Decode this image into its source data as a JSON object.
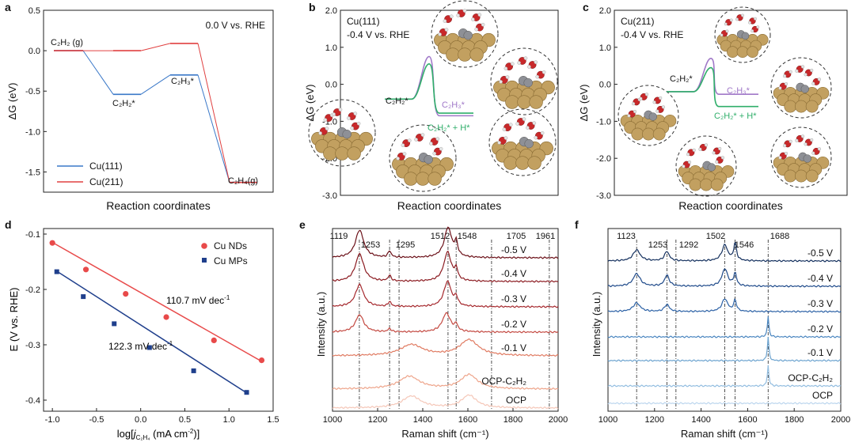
{
  "figure": {
    "panels": [
      {
        "label": "a"
      },
      {
        "label": "b"
      },
      {
        "label": "c"
      },
      {
        "label": "d"
      },
      {
        "label": "e"
      },
      {
        "label": "f"
      }
    ]
  },
  "colors": {
    "cu111": "#3a78c8",
    "cu211": "#e04040",
    "nds": "#e84a4a",
    "mps": "#1f3f8c",
    "green": "#2fae6a",
    "purple": "#a078c8",
    "atom_cu": "#c2a060",
    "atom_o": "#c8282a",
    "atom_c": "#8e9096",
    "atom_h": "#e6e6e6"
  },
  "chart_data": [
    {
      "panel": "a",
      "type": "line",
      "title": "0.0 V vs. RHE",
      "xlabel": "Reaction coordinates",
      "ylabel": "ΔG (eV)",
      "ylim": [
        -1.75,
        0.5
      ],
      "yticks": [
        "0.5",
        "0.0",
        "-0.5",
        "-1.0",
        "-1.5"
      ],
      "ytick_values": [
        0.5,
        0.0,
        -0.5,
        -1.0,
        -1.5
      ],
      "states": [
        "C2H2(g)",
        "C2H2*",
        "C2H3*",
        "C2H4(g)"
      ],
      "state_labels": {
        "s0": "C₂H₂ (g)",
        "s1": "C₂H₂*",
        "s2": "C₂H₃*",
        "s3": "C₂H₄(g)"
      },
      "series": [
        {
          "name": "Cu(111)",
          "values": [
            0.0,
            -0.54,
            -0.3,
            -1.63
          ]
        },
        {
          "name": "Cu(211)",
          "values": [
            0.0,
            0.0,
            0.09,
            -1.63
          ]
        }
      ]
    },
    {
      "panel": "b",
      "type": "line",
      "title_lines": [
        "Cu(111)",
        "-0.4 V vs. RHE"
      ],
      "xlabel": "Reaction coordinates",
      "ylabel": "ΔG (eV)",
      "ylim": [
        -3.0,
        2.0
      ],
      "yticks": [
        "2.0",
        "1.0",
        "0.0",
        "-1.0",
        "-2.0",
        "-3.0"
      ],
      "ytick_values": [
        2.0,
        1.0,
        0.0,
        -1.0,
        -2.0,
        -3.0
      ],
      "annotations": {
        "initial": "C₂H₂*",
        "h_path": "C₂H₃*",
        "h_path_alt": "C₂H₂* + H*"
      },
      "paths": [
        {
          "name": "C2H3*",
          "start": -0.4,
          "barrier": 0.75,
          "end": -0.85
        },
        {
          "name": "C2H2* + H*",
          "start": -0.4,
          "barrier": 0.55,
          "end": -0.78
        }
      ]
    },
    {
      "panel": "c",
      "type": "line",
      "title_lines": [
        "Cu(211)",
        "-0.4 V vs. RHE"
      ],
      "xlabel": "Reaction coordinates",
      "ylabel": "ΔG (eV)",
      "ylim": [
        -3.0,
        2.0
      ],
      "yticks": [
        "2.0",
        "1.0",
        "0.0",
        "-1.0",
        "-2.0",
        "-3.0"
      ],
      "ytick_values": [
        2.0,
        1.0,
        0.0,
        -1.0,
        -2.0,
        -3.0
      ],
      "annotations": {
        "initial": "C₂H₂*",
        "h_path": "C₂H₃*",
        "h_path_alt": "C₂H₂* + H*"
      },
      "paths": [
        {
          "name": "C2H3*",
          "start": -0.2,
          "barrier": 0.7,
          "end": -0.27
        },
        {
          "name": "C2H2* + H*",
          "start": -0.2,
          "barrier": 0.45,
          "end": -0.6
        }
      ]
    },
    {
      "panel": "d",
      "type": "scatter",
      "xlabel": "log[j C2H4 (mA cm-2)]",
      "xlabel_parts": {
        "pre": "log[",
        "j": "j",
        "sub": "C₂H₄",
        "post": " (mA cm",
        "sup": "-2",
        "end": ")]"
      },
      "ylabel": "E (V vs. RHE)",
      "xlim": [
        -1.1,
        1.5
      ],
      "ylim": [
        -0.42,
        -0.09
      ],
      "xticks": [
        "-1.0",
        "-0.5",
        "0.0",
        "0.5",
        "1.0",
        "1.5"
      ],
      "xtick_values": [
        -1.0,
        -0.5,
        0.0,
        0.5,
        1.0,
        1.5
      ],
      "yticks": [
        "-0.1",
        "-0.2",
        "-0.3",
        "-0.4"
      ],
      "ytick_values": [
        -0.1,
        -0.2,
        -0.3,
        -0.4
      ],
      "series": [
        {
          "name": "Cu NDs",
          "x": [
            -1.0,
            -0.62,
            -0.17,
            0.29,
            0.83,
            1.37
          ],
          "y": [
            -0.116,
            -0.164,
            -0.208,
            -0.25,
            -0.292,
            -0.328
          ],
          "fit": [
            [
              -1.0,
              -0.115
            ],
            [
              1.37,
              -0.33
            ]
          ],
          "slope_label": "110.7 mV dec",
          "slope_sup": "-1"
        },
        {
          "name": "Cu MPs",
          "x": [
            -0.95,
            -0.65,
            -0.3,
            0.1,
            0.6,
            1.2
          ],
          "y": [
            -0.168,
            -0.213,
            -0.262,
            -0.305,
            -0.347,
            -0.386
          ],
          "fit": [
            [
              -0.96,
              -0.166
            ],
            [
              1.22,
              -0.389
            ]
          ],
          "slope_label": "122.3 mV dec",
          "slope_sup": "-1"
        }
      ]
    },
    {
      "panel": "e",
      "type": "line",
      "xlabel": "Raman shift (cm⁻¹)",
      "ylabel": "Intensity (a.u.)",
      "xlim": [
        1000,
        2000
      ],
      "xticks": [
        "1000",
        "1200",
        "1400",
        "1600",
        "1800",
        "2000"
      ],
      "xtick_values": [
        1000,
        1200,
        1400,
        1600,
        1800,
        2000
      ],
      "peak_labels": [
        "1119",
        "1253",
        "1295",
        "1512",
        "1548",
        "1705",
        "1961"
      ],
      "peak_positions": [
        1119,
        1253,
        1295,
        1512,
        1548,
        1705,
        1961
      ],
      "series": [
        {
          "name": "-0.5 V",
          "peaks": [
            [
              1120,
              35,
              22
            ],
            [
              1253,
              8,
              8
            ],
            [
              1512,
              38,
              20
            ],
            [
              1548,
              16,
              8
            ]
          ]
        },
        {
          "name": "-0.4 V",
          "peaks": [
            [
              1120,
              35,
              22
            ],
            [
              1253,
              7,
              8
            ],
            [
              1510,
              37,
              20
            ],
            [
              1548,
              13,
              8
            ]
          ]
        },
        {
          "name": "-0.3 V",
          "peaks": [
            [
              1120,
              28,
              22
            ],
            [
              1253,
              6,
              8
            ],
            [
              1510,
              32,
              20
            ],
            [
              1548,
              10,
              8
            ]
          ]
        },
        {
          "name": "-0.2 V",
          "peaks": [
            [
              1120,
              22,
              22
            ],
            [
              1253,
              4,
              8
            ],
            [
              1505,
              24,
              22
            ],
            [
              1548,
              8,
              8
            ]
          ]
        },
        {
          "name": "-0.1 V",
          "peaks": [
            [
              1350,
              14,
              60
            ],
            [
              1605,
              20,
              50
            ]
          ]
        },
        {
          "name": "OCP-C₂H₂",
          "peaks": [
            [
              1340,
              16,
              55
            ],
            [
              1605,
              18,
              45
            ]
          ]
        },
        {
          "name": "OCP",
          "peaks": [
            [
              1350,
              15,
              50
            ],
            [
              1605,
              16,
              40
            ]
          ]
        }
      ]
    },
    {
      "panel": "f",
      "type": "line",
      "xlabel": "Raman shift (cm⁻¹)",
      "ylabel": "Intensity (a.u.)",
      "xlim": [
        1000,
        2000
      ],
      "xticks": [
        "1000",
        "1200",
        "1400",
        "1600",
        "1800",
        "2000"
      ],
      "xtick_values": [
        1000,
        1200,
        1400,
        1600,
        1800,
        2000
      ],
      "peak_labels": [
        "1123",
        "1253",
        "1292",
        "1502",
        "1546",
        "1688"
      ],
      "peak_positions": [
        1123,
        1253,
        1292,
        1502,
        1546,
        1688
      ],
      "series": [
        {
          "name": "-0.5 V",
          "peaks": [
            [
              1123,
              14,
              18
            ],
            [
              1253,
              12,
              12
            ],
            [
              1502,
              20,
              15
            ],
            [
              1546,
              22,
              7
            ]
          ]
        },
        {
          "name": "-0.4 V",
          "peaks": [
            [
              1123,
              16,
              18
            ],
            [
              1253,
              14,
              12
            ],
            [
              1502,
              22,
              15
            ],
            [
              1546,
              16,
              7
            ]
          ]
        },
        {
          "name": "-0.3 V",
          "peaks": [
            [
              1123,
              11,
              18
            ],
            [
              1253,
              9,
              12
            ],
            [
              1502,
              16,
              15
            ],
            [
              1546,
              14,
              7
            ]
          ]
        },
        {
          "name": "-0.2 V",
          "peaks": [
            [
              1688,
              26,
              4
            ]
          ]
        },
        {
          "name": "-0.1 V",
          "peaks": [
            [
              1688,
              30,
              4
            ]
          ]
        },
        {
          "name": "OCP-C₂H₂",
          "peaks": [
            [
              1688,
              26,
              4
            ]
          ]
        },
        {
          "name": "OCP",
          "peaks": []
        }
      ]
    }
  ]
}
